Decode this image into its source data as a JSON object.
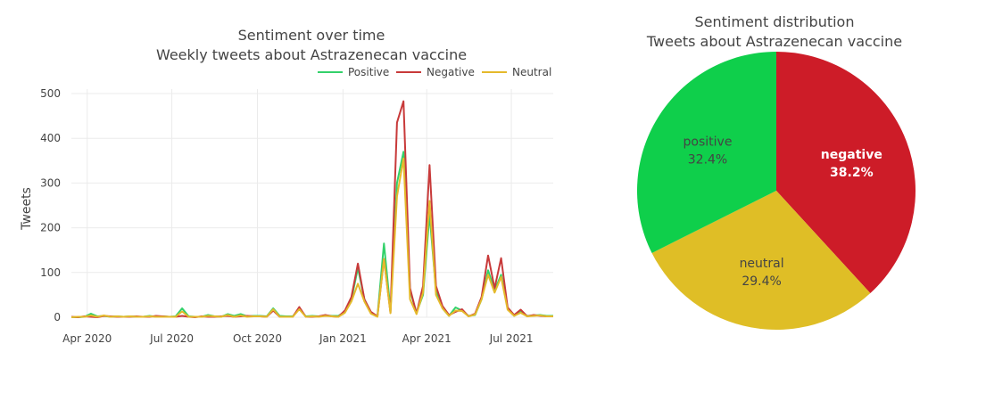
{
  "chart_data": [
    {
      "type": "line",
      "title": "Sentiment over time",
      "subtitle": "Weekly tweets about Astrazenecan vaccine",
      "xlabel": "",
      "ylabel": "Tweets",
      "ylim": [
        0,
        510
      ],
      "yticks": [
        0,
        100,
        200,
        300,
        400,
        500
      ],
      "xlim": [
        "2020-03-15",
        "2021-08-15"
      ],
      "xticks": [
        {
          "date": "2020-04-01",
          "label": "Apr 2020"
        },
        {
          "date": "2020-07-01",
          "label": "Jul 2020"
        },
        {
          "date": "2020-10-01",
          "label": "Oct 2020"
        },
        {
          "date": "2021-01-01",
          "label": "Jan 2021"
        },
        {
          "date": "2021-04-01",
          "label": "Apr 2021"
        },
        {
          "date": "2021-07-01",
          "label": "Jul 2021"
        }
      ],
      "grid": true,
      "legend_position": "top-right",
      "x": [
        "2020-03-15",
        "2020-03-22",
        "2020-03-29",
        "2020-04-05",
        "2020-04-12",
        "2020-04-19",
        "2020-04-26",
        "2020-05-03",
        "2020-05-10",
        "2020-05-17",
        "2020-05-24",
        "2020-05-31",
        "2020-06-07",
        "2020-06-14",
        "2020-06-21",
        "2020-06-28",
        "2020-07-05",
        "2020-07-12",
        "2020-07-19",
        "2020-07-26",
        "2020-08-02",
        "2020-08-09",
        "2020-08-16",
        "2020-08-23",
        "2020-08-30",
        "2020-09-06",
        "2020-09-13",
        "2020-09-20",
        "2020-09-27",
        "2020-10-04",
        "2020-10-11",
        "2020-10-18",
        "2020-10-25",
        "2020-11-01",
        "2020-11-08",
        "2020-11-15",
        "2020-11-22",
        "2020-11-29",
        "2020-12-06",
        "2020-12-13",
        "2020-12-20",
        "2020-12-27",
        "2021-01-03",
        "2021-01-10",
        "2021-01-17",
        "2021-01-24",
        "2021-01-31",
        "2021-02-07",
        "2021-02-14",
        "2021-02-21",
        "2021-02-28",
        "2021-03-07",
        "2021-03-14",
        "2021-03-21",
        "2021-03-28",
        "2021-04-04",
        "2021-04-11",
        "2021-04-18",
        "2021-04-25",
        "2021-05-02",
        "2021-05-09",
        "2021-05-16",
        "2021-05-23",
        "2021-05-30",
        "2021-06-06",
        "2021-06-13",
        "2021-06-20",
        "2021-06-27",
        "2021-07-04",
        "2021-07-11",
        "2021-07-18",
        "2021-07-25",
        "2021-08-01",
        "2021-08-08",
        "2021-08-15"
      ],
      "series": [
        {
          "name": "Positive",
          "color": "#33d16a",
          "values": [
            0,
            0,
            1,
            8,
            2,
            3,
            1,
            2,
            1,
            2,
            1,
            1,
            3,
            1,
            2,
            1,
            2,
            20,
            2,
            1,
            1,
            5,
            2,
            1,
            7,
            3,
            7,
            2,
            3,
            3,
            2,
            20,
            3,
            2,
            2,
            19,
            2,
            3,
            2,
            4,
            3,
            3,
            12,
            40,
            110,
            40,
            10,
            2,
            165,
            15,
            300,
            370,
            60,
            10,
            50,
            230,
            60,
            20,
            3,
            22,
            15,
            3,
            5,
            40,
            105,
            60,
            95,
            20,
            3,
            12,
            3,
            4,
            5,
            3,
            3
          ]
        },
        {
          "name": "Negative",
          "color": "#c83a3a",
          "values": [
            1,
            0,
            2,
            1,
            0,
            3,
            2,
            1,
            1,
            1,
            2,
            1,
            1,
            3,
            2,
            1,
            1,
            3,
            1,
            0,
            2,
            1,
            1,
            2,
            3,
            1,
            2,
            3,
            2,
            2,
            1,
            15,
            1,
            1,
            1,
            23,
            1,
            1,
            2,
            5,
            2,
            1,
            15,
            45,
            120,
            40,
            12,
            2,
            130,
            10,
            435,
            483,
            65,
            8,
            70,
            340,
            70,
            25,
            5,
            12,
            18,
            2,
            8,
            45,
            138,
            65,
            132,
            22,
            5,
            17,
            2,
            5,
            3,
            2,
            2
          ]
        },
        {
          "name": "Neutral",
          "color": "#e5b92b",
          "values": [
            0,
            1,
            1,
            4,
            1,
            4,
            1,
            2,
            1,
            2,
            1,
            1,
            2,
            1,
            1,
            1,
            1,
            13,
            1,
            1,
            1,
            3,
            2,
            1,
            5,
            1,
            4,
            1,
            2,
            2,
            1,
            18,
            1,
            1,
            1,
            18,
            1,
            2,
            1,
            3,
            2,
            1,
            10,
            35,
            75,
            35,
            8,
            1,
            130,
            9,
            270,
            355,
            40,
            7,
            55,
            260,
            50,
            20,
            3,
            15,
            14,
            2,
            6,
            40,
            95,
            55,
            90,
            17,
            3,
            10,
            2,
            3,
            4,
            2,
            2
          ]
        }
      ]
    },
    {
      "type": "pie",
      "title": "Sentiment distribution",
      "subtitle": "Tweets about Astrazenecan vaccine",
      "slices": [
        {
          "label": "negative",
          "value": 38.2,
          "text": "38.2%",
          "color": "#cd1c28",
          "text_color": "#ffffff",
          "bold": true
        },
        {
          "label": "neutral",
          "value": 29.4,
          "text": "29.4%",
          "color": "#dfbe26",
          "text_color": "#444444",
          "bold": false
        },
        {
          "label": "positive",
          "value": 32.4,
          "text": "32.4%",
          "color": "#0fcf4b",
          "text_color": "#444444",
          "bold": false
        }
      ]
    }
  ]
}
